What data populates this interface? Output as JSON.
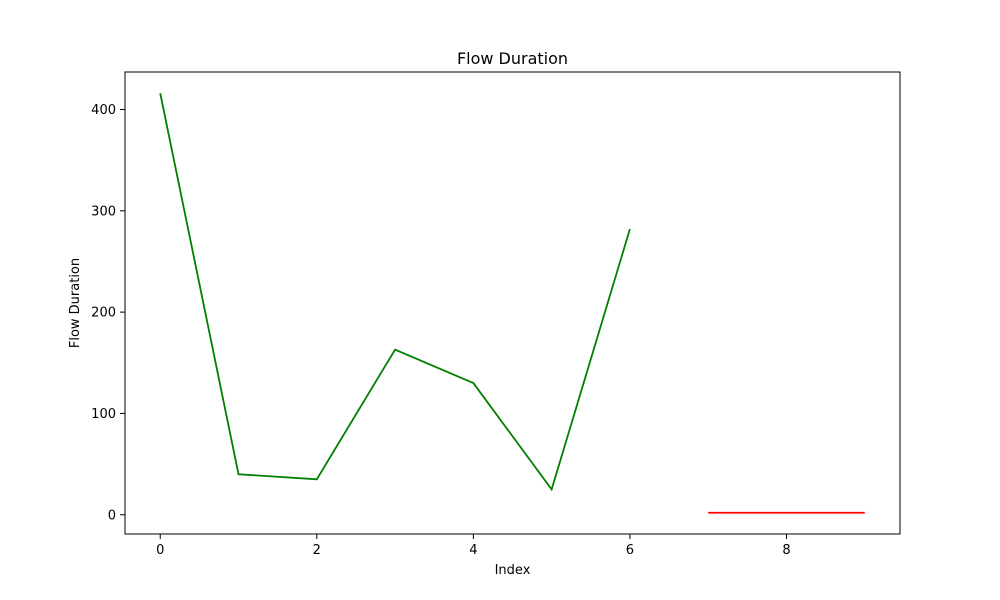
{
  "chart_data": {
    "type": "line",
    "title": "Flow Duration",
    "xlabel": "Index",
    "ylabel": "Flow Duration",
    "xlim": [
      -0.45,
      9.45
    ],
    "ylim": [
      -19,
      437
    ],
    "x_ticks": [
      0,
      2,
      4,
      6,
      8
    ],
    "y_ticks": [
      0,
      100,
      200,
      300,
      400
    ],
    "grid": false,
    "series": [
      {
        "color": "#008000",
        "x": [
          0,
          1,
          2,
          3,
          4,
          5,
          6
        ],
        "values": [
          416,
          40,
          35,
          163,
          130,
          25,
          282
        ]
      },
      {
        "color": "#ff0000",
        "x": [
          7,
          8,
          9
        ],
        "values": [
          2,
          2,
          2
        ]
      }
    ]
  }
}
